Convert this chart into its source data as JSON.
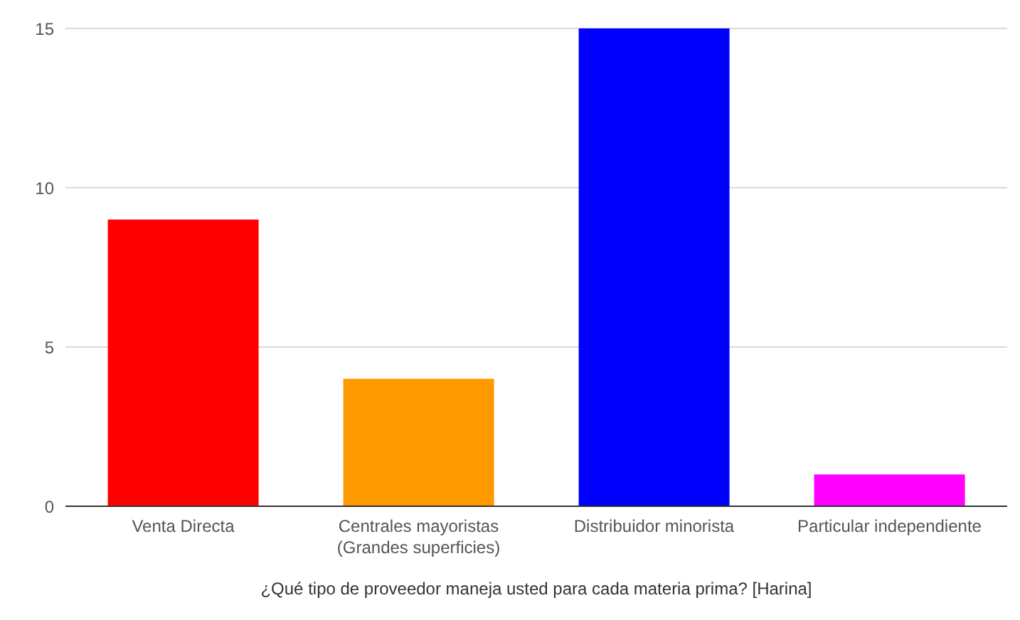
{
  "chart_data": {
    "type": "bar",
    "xlabel": "¿Qué tipo de proveedor maneja usted para cada materia prima? [Harina]",
    "categories": [
      "Venta Directa",
      "Centrales mayoristas (Grandes superficies)",
      "Distribuidor minorista",
      "Particular independiente"
    ],
    "values": [
      9,
      4,
      15,
      1
    ],
    "colors": [
      "#ff0000",
      "#ff9900",
      "#0000ff",
      "#ff00ff"
    ],
    "ylim": [
      0,
      15
    ],
    "yticks": [
      0,
      5,
      10,
      15
    ],
    "grid": "y",
    "legend": false
  }
}
